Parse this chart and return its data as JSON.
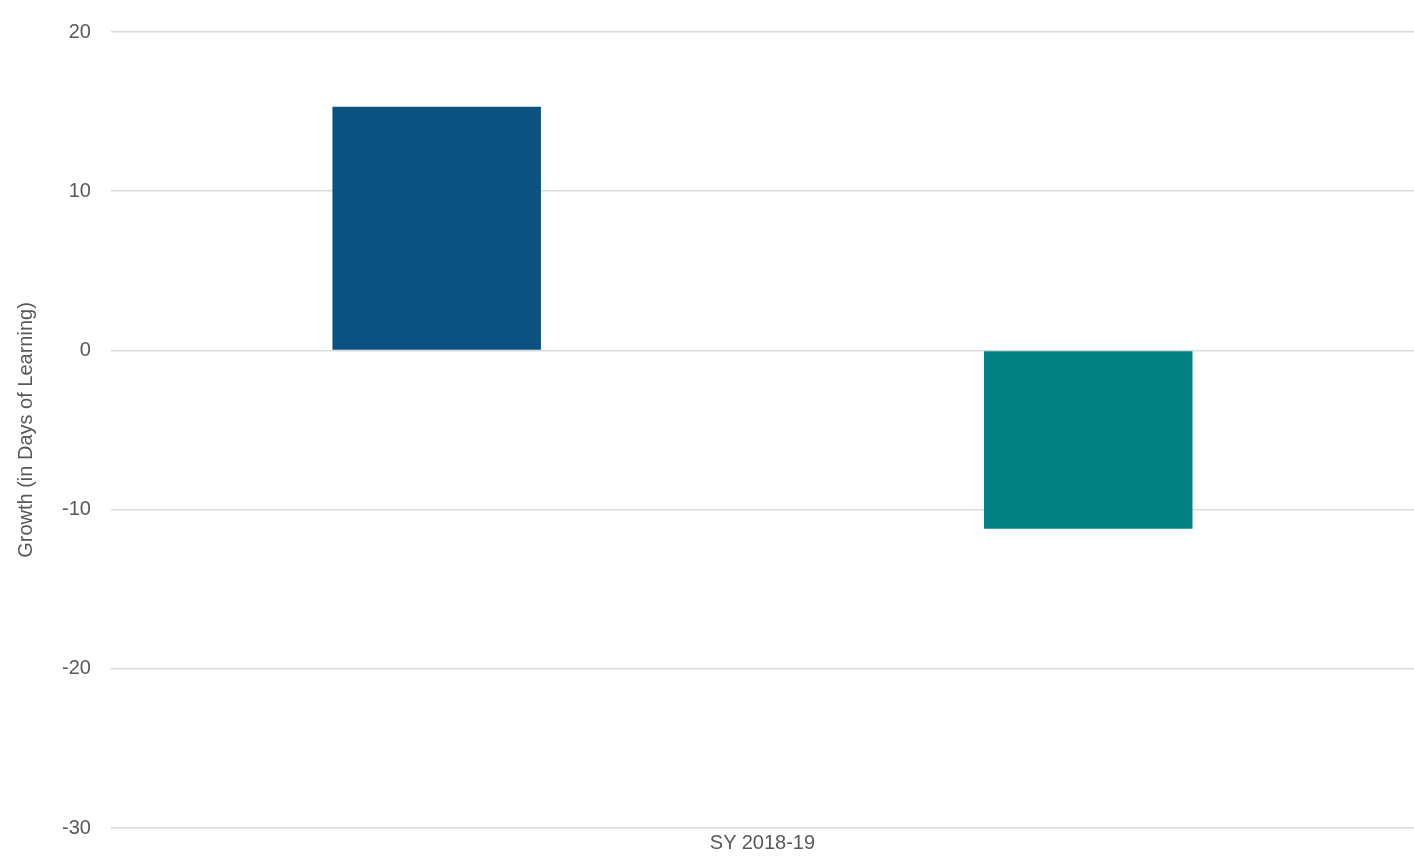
{
  "chart_data": {
    "type": "bar",
    "ylabel": "Growth (in Days of Learning)",
    "categories": [
      "SY 2018-19"
    ],
    "series": [
      {
        "color": "#0b5280",
        "values": [
          15.3
        ]
      },
      {
        "color": "#008080",
        "values": [
          -11.2
        ]
      }
    ],
    "ylim": [
      -30,
      20
    ],
    "yticks": [
      -30,
      -20,
      -10,
      0,
      10,
      20
    ],
    "grid": "y",
    "legend": false
  }
}
